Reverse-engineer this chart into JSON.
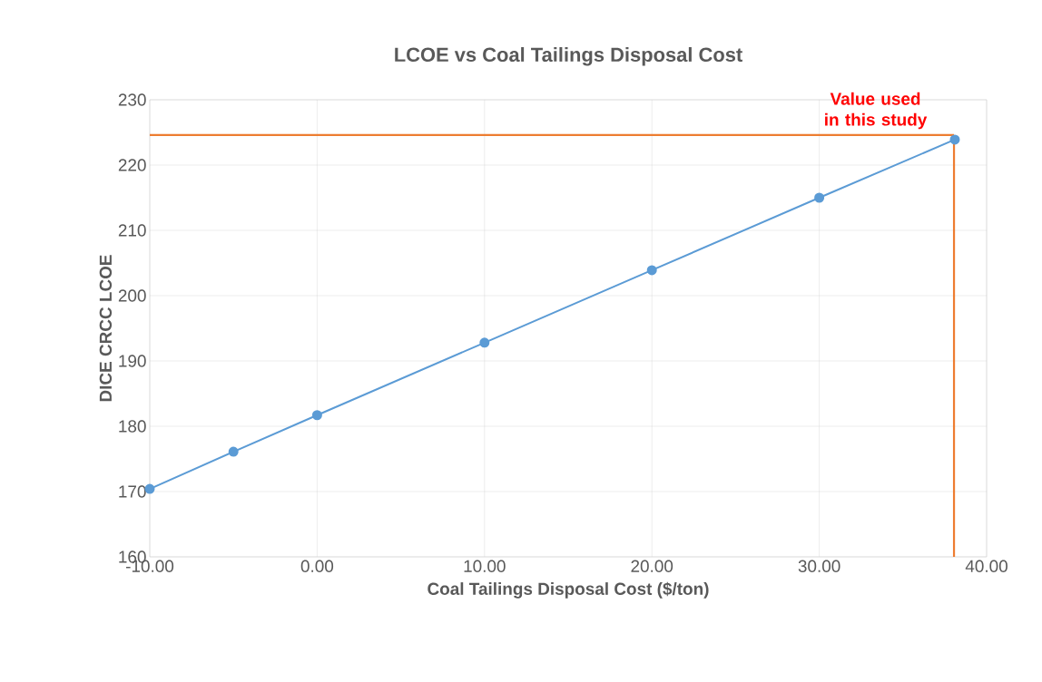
{
  "chart_data": {
    "type": "line",
    "title": "LCOE vs Coal Tailings Disposal Cost",
    "xlabel": "Coal Tailings Disposal Cost ($/ton)",
    "ylabel": "DICE CRCC LCOE",
    "series": [
      {
        "color": "#5b9bd5",
        "x": [
          -10,
          -5,
          0,
          10,
          20,
          30,
          38.1
        ],
        "values": [
          170.4,
          176.1,
          181.7,
          192.8,
          203.9,
          215,
          223.9
        ]
      }
    ],
    "xlim": [
      -10,
      40
    ],
    "ylim": [
      160,
      230
    ],
    "xticks": [
      {
        "value": -10,
        "label": "-10.00"
      },
      {
        "value": 0,
        "label": "0.00"
      },
      {
        "value": 10,
        "label": "10.00"
      },
      {
        "value": 20,
        "label": "20.00"
      },
      {
        "value": 30,
        "label": "30.00"
      },
      {
        "value": 40,
        "label": "40.00"
      }
    ],
    "yticks": [
      160,
      170,
      180,
      190,
      200,
      210,
      220,
      230
    ],
    "ref_lines": [
      {
        "axis": "x",
        "value": 38.05,
        "color": "#ed7d31"
      },
      {
        "axis": "y",
        "value": 224.6,
        "color": "#ed7d31"
      }
    ],
    "annotations": [
      {
        "text": "Value used in this study",
        "x": 38.05,
        "y": 224.6
      }
    ],
    "grid": true,
    "marker": "circle",
    "line_style": "solid"
  }
}
